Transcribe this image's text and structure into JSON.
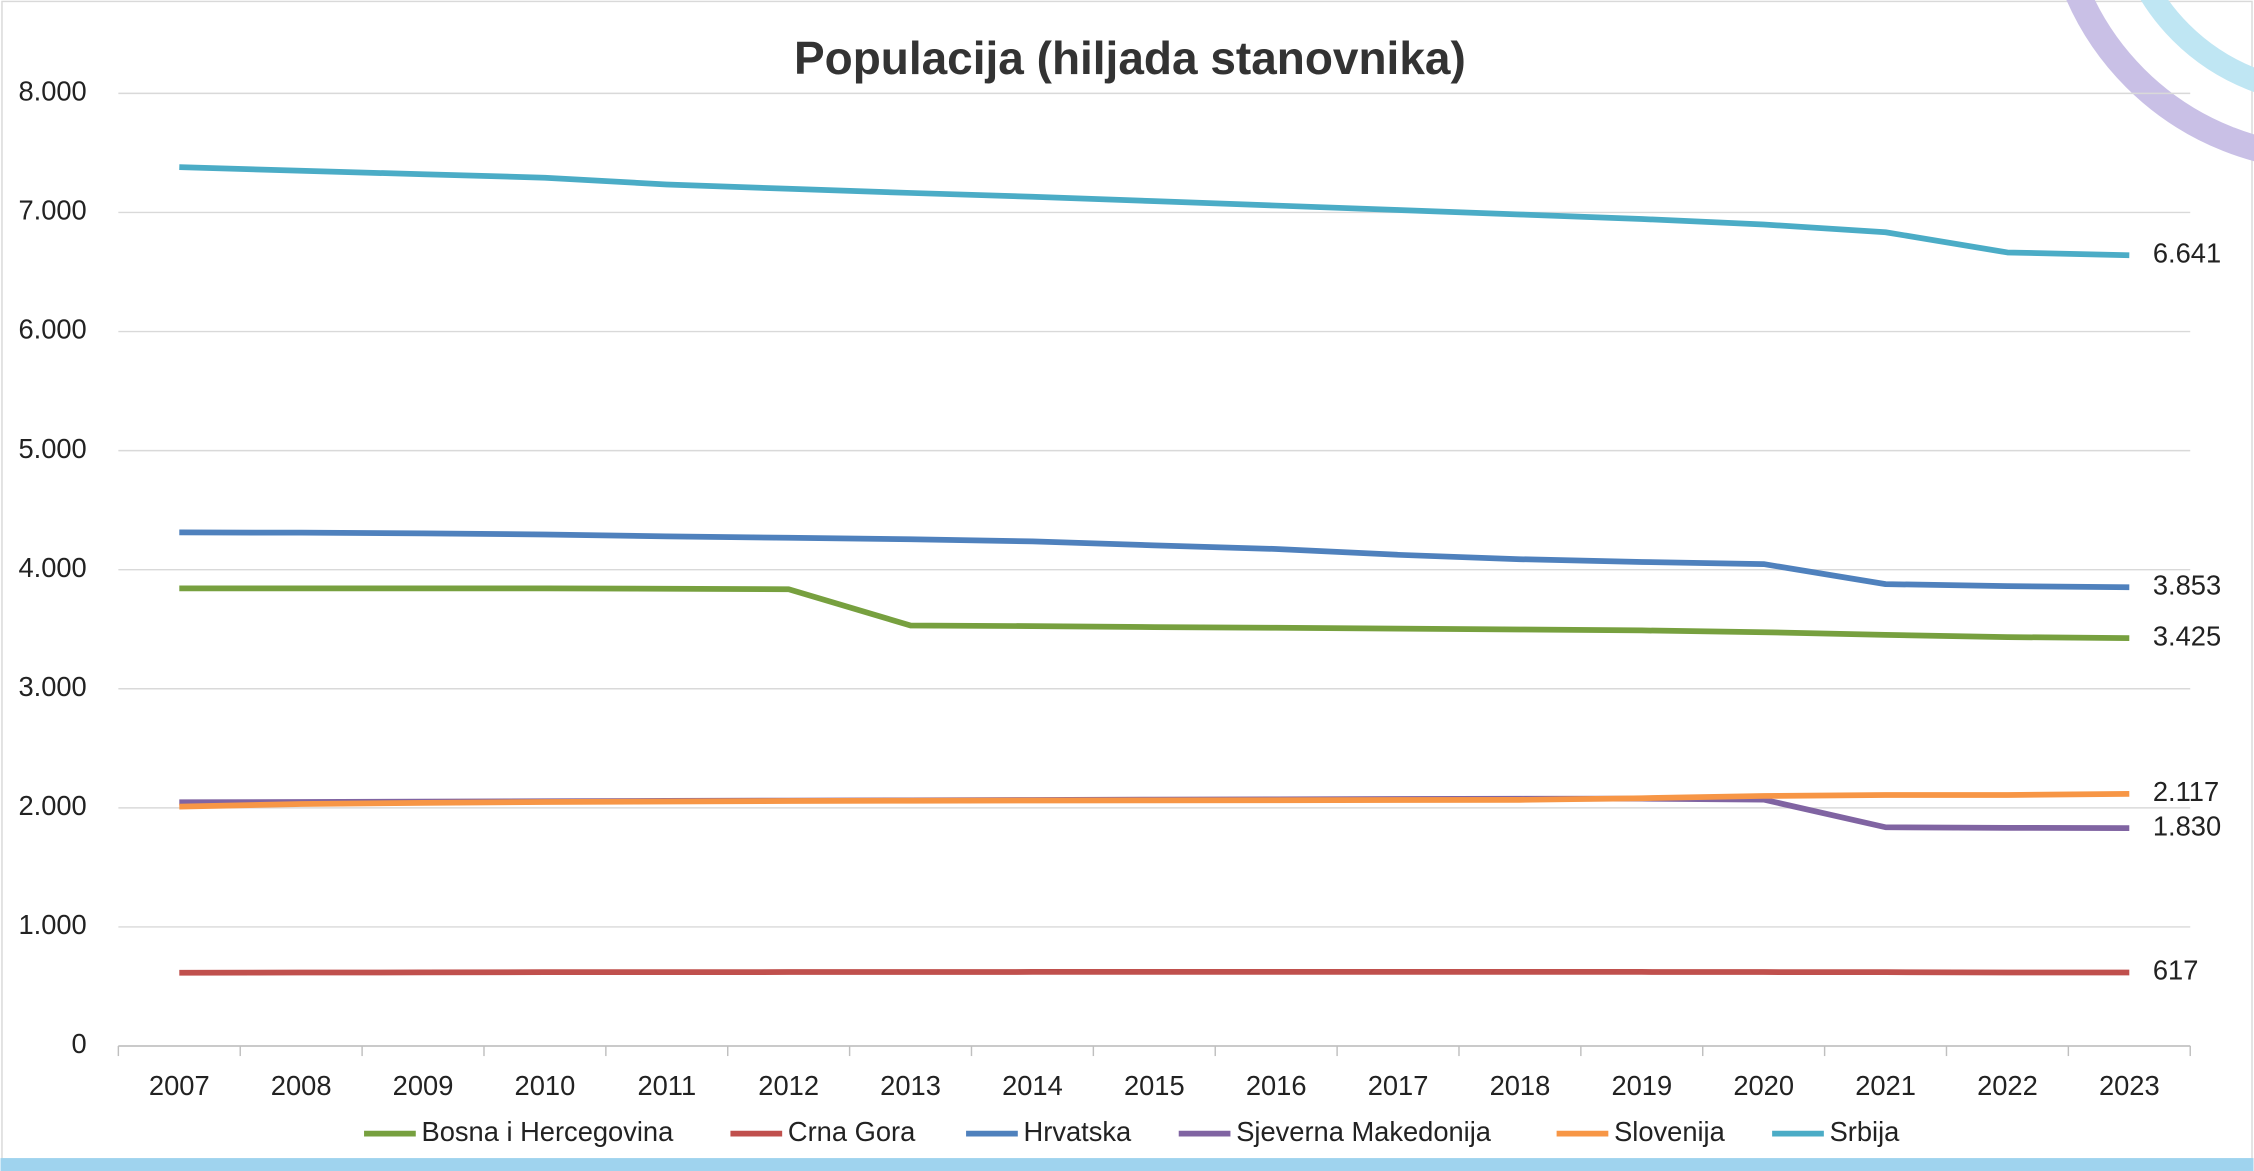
{
  "chart_data": {
    "type": "line",
    "title": "Populacija (hiljada stanovnika)",
    "categories": [
      "2007",
      "2008",
      "2009",
      "2010",
      "2011",
      "2012",
      "2013",
      "2014",
      "2015",
      "2016",
      "2017",
      "2018",
      "2019",
      "2020",
      "2021",
      "2022",
      "2023"
    ],
    "ylim": [
      0,
      8000
    ],
    "yticks": [
      0,
      {
        "value": 1000,
        "label": "1.000"
      },
      {
        "value": 2000,
        "label": "2.000"
      },
      {
        "value": 3000,
        "label": "3.000"
      },
      {
        "value": 4000,
        "label": "4.000"
      },
      {
        "value": 5000,
        "label": "5.000"
      },
      {
        "value": 6000,
        "label": "6.000"
      },
      {
        "value": 7000,
        "label": "7.000"
      },
      {
        "value": 8000,
        "label": "8.000"
      }
    ],
    "grid": true,
    "series": [
      {
        "name": "Bosna i Hercegovina",
        "color": "#77a03f",
        "values": [
          3843,
          3843,
          3843,
          3843,
          3840,
          3836,
          3531,
          3526,
          3518,
          3512,
          3505,
          3498,
          3490,
          3475,
          3453,
          3434,
          3425
        ],
        "value_labels": [
          null,
          null,
          null,
          null,
          null,
          null,
          null,
          null,
          null,
          null,
          null,
          null,
          null,
          null,
          null,
          null,
          "3.425"
        ]
      },
      {
        "name": "Crna Gora",
        "color": "#c0504d",
        "values": [
          615,
          617,
          618,
          620,
          620,
          621,
          621,
          622,
          622,
          622,
          622,
          622,
          622,
          621,
          620,
          617,
          617
        ],
        "value_labels": [
          null,
          null,
          null,
          null,
          null,
          null,
          null,
          null,
          null,
          null,
          null,
          null,
          null,
          null,
          null,
          null,
          "617"
        ]
      },
      {
        "name": "Hrvatska",
        "color": "#4f81bd",
        "values": [
          4313,
          4311,
          4305,
          4296,
          4280,
          4268,
          4256,
          4238,
          4204,
          4174,
          4125,
          4088,
          4065,
          4047,
          3879,
          3862,
          3853
        ],
        "value_labels": [
          null,
          null,
          null,
          null,
          null,
          null,
          null,
          null,
          null,
          null,
          null,
          null,
          null,
          null,
          null,
          null,
          "3.853"
        ]
      },
      {
        "name": "Sjeverna Makedonija",
        "color": "#8064a2",
        "values": [
          2047,
          2049,
          2052,
          2055,
          2059,
          2061,
          2063,
          2066,
          2069,
          2071,
          2074,
          2076,
          2077,
          2069,
          1837,
          1832,
          1830
        ],
        "value_labels": [
          null,
          null,
          null,
          null,
          null,
          null,
          null,
          null,
          null,
          null,
          null,
          null,
          null,
          null,
          null,
          null,
          "1.830"
        ]
      },
      {
        "name": "Slovenija",
        "color": "#f79646",
        "values": [
          2010,
          2032,
          2042,
          2049,
          2053,
          2057,
          2060,
          2062,
          2063,
          2064,
          2066,
          2067,
          2081,
          2100,
          2108,
          2108,
          2117
        ],
        "value_labels": [
          null,
          null,
          null,
          null,
          null,
          null,
          null,
          null,
          null,
          null,
          null,
          null,
          null,
          null,
          null,
          null,
          "2.117"
        ]
      },
      {
        "name": "Srbija",
        "color": "#4bacc6",
        "values": [
          7381,
          7350,
          7321,
          7292,
          7235,
          7199,
          7164,
          7132,
          7095,
          7058,
          7021,
          6983,
          6945,
          6899,
          6834,
          6664,
          6641
        ],
        "value_labels": [
          null,
          null,
          null,
          null,
          null,
          null,
          null,
          null,
          null,
          null,
          null,
          null,
          null,
          null,
          null,
          null,
          "6.641"
        ]
      }
    ]
  }
}
